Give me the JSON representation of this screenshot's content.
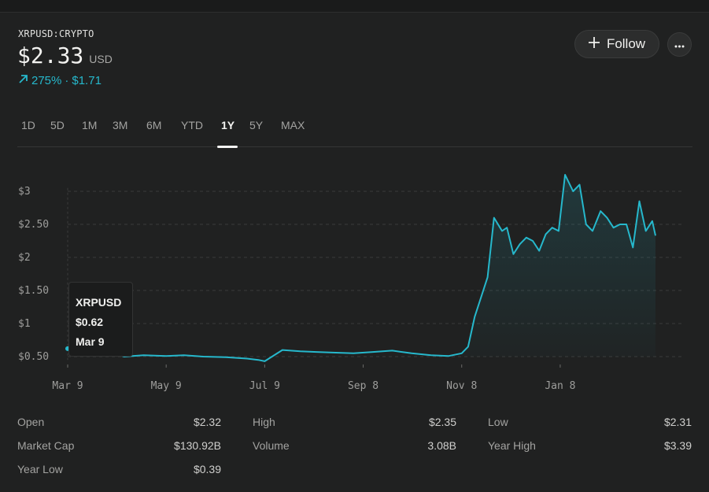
{
  "header": {
    "ticker": "XRPUSD:CRYPTO",
    "price": "$2.33",
    "currency": "USD",
    "change_percent": "275%",
    "change_separator": "·",
    "change_amount": "$1.71",
    "accent_color": "#26b8cc"
  },
  "actions": {
    "follow_label": "Follow",
    "follow_icon": "plus-icon",
    "more_icon": "more-dots-icon"
  },
  "tabs": [
    {
      "label": "1D"
    },
    {
      "label": "5D"
    },
    {
      "label": "1M"
    },
    {
      "label": "3M"
    },
    {
      "label": "6M"
    },
    {
      "label": "YTD"
    },
    {
      "label": "1Y",
      "active": true
    },
    {
      "label": "5Y"
    },
    {
      "label": "MAX"
    }
  ],
  "tooltip": {
    "name": "XRPUSD",
    "value": "$0.62",
    "date": "Mar 9"
  },
  "chart_data": {
    "type": "area",
    "title": "",
    "xlabel": "",
    "ylabel": "",
    "ylim": [
      0.4,
      3.3
    ],
    "grid": true,
    "y_ticks": [
      "$0.50",
      "$1",
      "$1.50",
      "$2",
      "$2.50",
      "$3"
    ],
    "y_tick_values": [
      0.5,
      1.0,
      1.5,
      2.0,
      2.5,
      3.0
    ],
    "x_ticks": [
      "Mar 9",
      "May 9",
      "Jul 9",
      "Sep 8",
      "Nov 8",
      "Jan 8"
    ],
    "x_tick_values": [
      "2024-03-09",
      "2024-05-09",
      "2024-07-09",
      "2024-09-08",
      "2024-11-08",
      "2025-01-08"
    ],
    "series": [
      {
        "color": "#26b8cc",
        "x": [
          "2024-03-09",
          "2024-03-20",
          "2024-04-01",
          "2024-04-13",
          "2024-04-25",
          "2024-05-09",
          "2024-05-20",
          "2024-06-01",
          "2024-06-15",
          "2024-06-28",
          "2024-07-05",
          "2024-07-09",
          "2024-07-20",
          "2024-07-31",
          "2024-08-10",
          "2024-08-22",
          "2024-09-02",
          "2024-09-14",
          "2024-09-26",
          "2024-10-08",
          "2024-10-20",
          "2024-10-31",
          "2024-11-08",
          "2024-11-12",
          "2024-11-16",
          "2024-11-20",
          "2024-11-24",
          "2024-11-28",
          "2024-12-03",
          "2024-12-06",
          "2024-12-10",
          "2024-12-14",
          "2024-12-18",
          "2024-12-22",
          "2024-12-26",
          "2024-12-30",
          "2025-01-03",
          "2025-01-07",
          "2025-01-11",
          "2025-01-16",
          "2025-01-20",
          "2025-01-24",
          "2025-01-28",
          "2025-02-02",
          "2025-02-06",
          "2025-02-10",
          "2025-02-14",
          "2025-02-18",
          "2025-02-22",
          "2025-02-26",
          "2025-03-02",
          "2025-03-06",
          "2025-03-08"
        ],
        "y": [
          0.62,
          0.61,
          0.6,
          0.5,
          0.52,
          0.51,
          0.52,
          0.5,
          0.49,
          0.47,
          0.45,
          0.43,
          0.6,
          0.58,
          0.57,
          0.56,
          0.55,
          0.57,
          0.59,
          0.55,
          0.52,
          0.51,
          0.55,
          0.65,
          1.1,
          1.4,
          1.7,
          2.6,
          2.4,
          2.45,
          2.05,
          2.2,
          2.3,
          2.25,
          2.1,
          2.35,
          2.45,
          2.4,
          3.25,
          3.0,
          3.1,
          2.5,
          2.4,
          2.7,
          2.6,
          2.45,
          2.5,
          2.5,
          2.15,
          2.85,
          2.4,
          2.55,
          2.33
        ]
      }
    ]
  },
  "stats": [
    {
      "label": "Open",
      "value": "$2.32"
    },
    {
      "label": "High",
      "value": "$2.35"
    },
    {
      "label": "Low",
      "value": "$2.31"
    },
    {
      "label": "Market Cap",
      "value": "$130.92B"
    },
    {
      "label": "Volume",
      "value": "3.08B"
    },
    {
      "label": "Year High",
      "value": "$3.39"
    },
    {
      "label": "Year Low",
      "value": "$0.39"
    }
  ]
}
